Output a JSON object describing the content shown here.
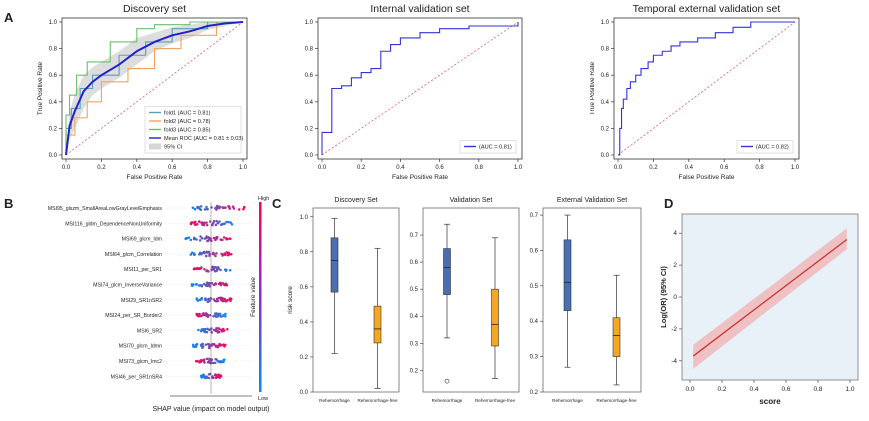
{
  "panel_letters": [
    "A",
    "B",
    "C",
    "D"
  ],
  "colors": {
    "fold1": "#5aa0b8",
    "fold2": "#f5a25d",
    "fold3": "#6cbf6c",
    "mean": "#2222cc",
    "roc": "#3333dd",
    "chance": "#e06060",
    "ci": "#bbbbbb",
    "box_rehem": "#4a6fb0",
    "box_free": "#f5a623",
    "shap_high": "#ff0052",
    "shap_low": "#008bfb",
    "or_line": "#cc3333",
    "or_band": "#f0b8b8",
    "or_bg": "#e8f0f8"
  },
  "chart_data": [
    {
      "type": "line",
      "title": "Discovery set",
      "xlabel": "False Positive Rate",
      "ylabel": "True Positive Rate",
      "xlim": [
        0,
        1
      ],
      "ylim": [
        0,
        1
      ],
      "xticks": [
        "0.0",
        "0.2",
        "0.4",
        "0.6",
        "0.8",
        "1.0"
      ],
      "yticks": [
        "0.0",
        "0.2",
        "0.4",
        "0.6",
        "0.8",
        "1.0"
      ],
      "legend_position": "bottom-right",
      "series": [
        {
          "name": "fold1 (AUC = 0.81)",
          "color_key": "fold1",
          "x": [
            0,
            0,
            0.03,
            0.03,
            0.08,
            0.08,
            0.15,
            0.15,
            0.3,
            0.3,
            0.45,
            0.45,
            0.6,
            0.6,
            0.8,
            0.8,
            1.0
          ],
          "y": [
            0,
            0.2,
            0.2,
            0.35,
            0.35,
            0.5,
            0.5,
            0.6,
            0.6,
            0.75,
            0.75,
            0.85,
            0.85,
            0.95,
            0.95,
            1.0,
            1.0
          ]
        },
        {
          "name": "fold2 (AUC = 0.78)",
          "color_key": "fold2",
          "x": [
            0,
            0,
            0.05,
            0.05,
            0.12,
            0.12,
            0.2,
            0.2,
            0.35,
            0.35,
            0.5,
            0.5,
            0.65,
            0.65,
            0.85,
            0.85,
            1.0
          ],
          "y": [
            0,
            0.15,
            0.15,
            0.28,
            0.28,
            0.4,
            0.4,
            0.55,
            0.55,
            0.65,
            0.65,
            0.8,
            0.8,
            0.9,
            0.9,
            1.0,
            1.0
          ]
        },
        {
          "name": "fold3 (AUC = 0.85)",
          "color_key": "fold3",
          "x": [
            0,
            0,
            0.02,
            0.02,
            0.06,
            0.06,
            0.12,
            0.12,
            0.25,
            0.25,
            0.4,
            0.4,
            0.5,
            0.5,
            0.7,
            0.7,
            1.0
          ],
          "y": [
            0,
            0.3,
            0.3,
            0.45,
            0.45,
            0.6,
            0.6,
            0.7,
            0.7,
            0.85,
            0.85,
            0.95,
            0.95,
            0.98,
            0.98,
            1.0,
            1.0
          ]
        },
        {
          "name": "Mean ROC (AUC = 0.81 ± 0.03)",
          "color_key": "mean",
          "width": 2,
          "x": [
            0,
            0.02,
            0.05,
            0.1,
            0.15,
            0.2,
            0.3,
            0.4,
            0.5,
            0.6,
            0.7,
            0.8,
            0.9,
            1.0
          ],
          "y": [
            0,
            0.22,
            0.33,
            0.48,
            0.55,
            0.6,
            0.68,
            0.78,
            0.85,
            0.9,
            0.93,
            0.97,
            0.99,
            1.0
          ]
        }
      ],
      "ci_band": {
        "name": "95% CI",
        "color_key": "ci",
        "x": [
          0,
          0.02,
          0.05,
          0.1,
          0.15,
          0.2,
          0.3,
          0.4,
          0.5,
          0.6,
          0.7,
          0.8,
          0.9,
          1.0
        ],
        "lower": [
          0,
          0.12,
          0.2,
          0.35,
          0.45,
          0.5,
          0.58,
          0.68,
          0.78,
          0.84,
          0.88,
          0.94,
          0.97,
          1.0
        ],
        "upper": [
          0,
          0.32,
          0.46,
          0.6,
          0.66,
          0.7,
          0.78,
          0.88,
          0.92,
          0.96,
          0.98,
          1.0,
          1.0,
          1.0
        ]
      }
    },
    {
      "type": "line",
      "title": "Internal validation set",
      "xlabel": "False Positive Rate",
      "ylabel": "True Positive Rate",
      "xlim": [
        0,
        1
      ],
      "ylim": [
        0,
        1
      ],
      "xticks": [
        "0.0",
        "0.2",
        "0.4",
        "0.6",
        "0.8",
        "1.0"
      ],
      "yticks": [
        "0.0",
        "0.2",
        "0.4",
        "0.6",
        "0.8",
        "1.0"
      ],
      "legend_position": "bottom-right",
      "series": [
        {
          "name": "(AUC = 0.81)",
          "color_key": "roc",
          "x": [
            0,
            0,
            0.05,
            0.05,
            0.1,
            0.1,
            0.15,
            0.15,
            0.2,
            0.2,
            0.25,
            0.25,
            0.3,
            0.3,
            0.35,
            0.35,
            0.4,
            0.4,
            0.5,
            0.5,
            0.6,
            0.6,
            0.75,
            0.75,
            1.0,
            1.0
          ],
          "y": [
            0,
            0.17,
            0.17,
            0.5,
            0.5,
            0.52,
            0.52,
            0.58,
            0.58,
            0.62,
            0.62,
            0.65,
            0.65,
            0.78,
            0.78,
            0.83,
            0.83,
            0.88,
            0.88,
            0.92,
            0.92,
            0.95,
            0.95,
            0.97,
            0.97,
            1.0
          ]
        }
      ]
    },
    {
      "type": "line",
      "title": "Temporal external validation set",
      "xlabel": "False Positive Rate",
      "ylabel": "True Positive Rate",
      "xlim": [
        0,
        1
      ],
      "ylim": [
        0,
        1
      ],
      "xticks": [
        "0.0",
        "0.2",
        "0.4",
        "0.6",
        "0.8",
        "1.0"
      ],
      "yticks": [
        "0.0",
        "0.2",
        "0.4",
        "0.6",
        "0.8",
        "1.0"
      ],
      "legend_position": "bottom-right",
      "series": [
        {
          "name": "(AUC = 0.82)",
          "color_key": "roc",
          "x": [
            0,
            0.01,
            0.01,
            0.02,
            0.02,
            0.03,
            0.03,
            0.05,
            0.05,
            0.07,
            0.07,
            0.1,
            0.1,
            0.13,
            0.13,
            0.17,
            0.17,
            0.2,
            0.2,
            0.25,
            0.25,
            0.3,
            0.3,
            0.35,
            0.35,
            0.45,
            0.45,
            0.55,
            0.55,
            0.65,
            0.65,
            0.75,
            0.75,
            1.0
          ],
          "y": [
            0,
            0,
            0.2,
            0.2,
            0.35,
            0.35,
            0.42,
            0.42,
            0.5,
            0.5,
            0.55,
            0.55,
            0.6,
            0.6,
            0.65,
            0.65,
            0.7,
            0.7,
            0.75,
            0.75,
            0.78,
            0.78,
            0.82,
            0.82,
            0.85,
            0.85,
            0.88,
            0.88,
            0.92,
            0.92,
            0.96,
            0.96,
            1.0,
            1.0
          ]
        }
      ]
    },
    {
      "type": "scatter",
      "subtype": "shap_beeswarm",
      "xlabel": "SHAP value (impact on model output)",
      "colorbar_label": "Feature value",
      "colorbar_high": "High",
      "colorbar_low": "Low",
      "xlim": [
        -0.6,
        0.6
      ],
      "features": [
        {
          "name": "MSI95_glszm_SmallAreaLowGrayLevelEmphasis",
          "min": -0.32,
          "max": 0.52
        },
        {
          "name": "MSI116_gldm_DependenceNonUniformity",
          "min": -0.3,
          "max": 0.35
        },
        {
          "name": "MSI69_glcm_Idm",
          "min": -0.4,
          "max": 0.3
        },
        {
          "name": "MSI64_glcm_Correlation",
          "min": -0.35,
          "max": 0.32
        },
        {
          "name": "MSI11_per_SR1",
          "min": -0.25,
          "max": 0.3
        },
        {
          "name": "MSI74_glcm_InverseVariance",
          "min": -0.28,
          "max": 0.25
        },
        {
          "name": "MSI29_SR1nSR2",
          "min": -0.22,
          "max": 0.3
        },
        {
          "name": "MSI24_per_SR_Border2",
          "min": -0.25,
          "max": 0.22
        },
        {
          "name": "MSI6_SR2",
          "min": -0.2,
          "max": 0.25
        },
        {
          "name": "MSI70_glcm_Idmn",
          "min": -0.28,
          "max": 0.22
        },
        {
          "name": "MSI73_glcm_Imc2",
          "min": -0.22,
          "max": 0.2
        },
        {
          "name": "MSI46_per_SR1nSR4",
          "min": -0.15,
          "max": 0.15
        }
      ]
    },
    {
      "type": "box",
      "title": "Discovery Set",
      "ylabel": "risk score",
      "ylim": [
        0,
        1.05
      ],
      "yticks": [
        "0.0",
        "0.2",
        "0.4",
        "0.6",
        "0.8",
        "1.0"
      ],
      "categories": [
        "Rehemorrhage",
        "Rehemorrhage-free"
      ],
      "boxes": [
        {
          "whislo": 0.22,
          "q1": 0.57,
          "med": 0.75,
          "q3": 0.88,
          "whishi": 0.99,
          "color_key": "box_rehem",
          "fliers": []
        },
        {
          "whislo": 0.02,
          "q1": 0.28,
          "med": 0.36,
          "q3": 0.49,
          "whishi": 0.82,
          "color_key": "box_free",
          "fliers": []
        }
      ]
    },
    {
      "type": "box",
      "title": "Validation Set",
      "ylim": [
        0.12,
        0.8
      ],
      "yticks": [
        "0.2",
        "0.3",
        "0.4",
        "0.5",
        "0.6",
        "0.7"
      ],
      "categories": [
        "Rehemorrhage",
        "Rehemorrhage-free"
      ],
      "boxes": [
        {
          "whislo": 0.32,
          "q1": 0.48,
          "med": 0.58,
          "q3": 0.65,
          "whishi": 0.74,
          "color_key": "box_rehem",
          "fliers": [
            0.16
          ]
        },
        {
          "whislo": 0.17,
          "q1": 0.29,
          "med": 0.37,
          "q3": 0.5,
          "whishi": 0.69,
          "color_key": "box_free",
          "fliers": []
        }
      ]
    },
    {
      "type": "box",
      "title": "External Validation Set",
      "ylim": [
        0.2,
        0.72
      ],
      "yticks": [
        "0.2",
        "0.3",
        "0.4",
        "0.5",
        "0.6",
        "0.7"
      ],
      "categories": [
        "Rehemorrhage",
        "Rehemorrhage-free"
      ],
      "boxes": [
        {
          "whislo": 0.27,
          "q1": 0.43,
          "med": 0.51,
          "q3": 0.63,
          "whishi": 0.7,
          "color_key": "box_rehem",
          "fliers": []
        },
        {
          "whislo": 0.22,
          "q1": 0.3,
          "med": 0.36,
          "q3": 0.41,
          "whishi": 0.53,
          "color_key": "box_free",
          "fliers": []
        }
      ]
    },
    {
      "type": "line",
      "xlabel": "score",
      "ylabel": "Log(OR) (95% CI)",
      "xlim": [
        -0.05,
        1.05
      ],
      "ylim": [
        -5.2,
        5.2
      ],
      "xticks": [
        "0.0",
        "0.2",
        "0.4",
        "0.6",
        "0.8",
        "1.0"
      ],
      "yticks": [
        "-4",
        "-2",
        "0",
        "2",
        "4"
      ],
      "series": [
        {
          "x": [
            0.02,
            0.98
          ],
          "y": [
            -3.7,
            3.6
          ],
          "lower": [
            -4.5,
            3.0
          ],
          "upper": [
            -3.0,
            4.3
          ],
          "color_key": "or_line"
        }
      ]
    }
  ]
}
